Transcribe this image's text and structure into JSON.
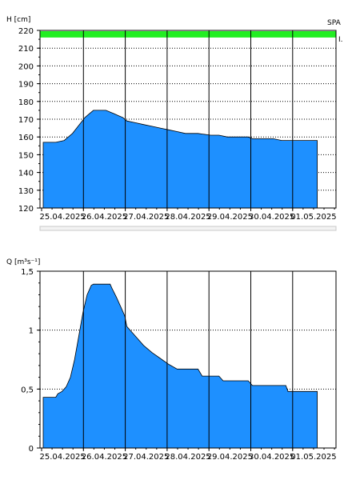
{
  "chart_data": [
    {
      "type": "area",
      "ylabel": "H [cm]",
      "corner_label": "SPA",
      "marker_label": "I.",
      "ylim": [
        120,
        220
      ],
      "yticks": [
        "120",
        "130",
        "140",
        "150",
        "160",
        "170",
        "180",
        "190",
        "200",
        "210",
        "220"
      ],
      "x_dates": [
        "25.04.2025",
        "26.04.2025",
        "27.04.2025",
        "28.04.2025",
        "29.04.2025",
        "30.04.2025",
        "01.05.2025"
      ],
      "grid": true,
      "threshold_band": {
        "from": 216,
        "to": 220,
        "color": "#22ee22"
      },
      "fill_color": "#1e90ff",
      "series": [
        {
          "values": [
            [
              0.0,
              157
            ],
            [
              0.3,
              157
            ],
            [
              0.5,
              158
            ],
            [
              0.6,
              160
            ],
            [
              0.7,
              162
            ],
            [
              0.8,
              165
            ],
            [
              0.9,
              168
            ],
            [
              1.0,
              171
            ],
            [
              1.1,
              173
            ],
            [
              1.2,
              175
            ],
            [
              1.5,
              175
            ],
            [
              1.6,
              174
            ],
            [
              1.7,
              173
            ],
            [
              1.8,
              172
            ],
            [
              1.9,
              171
            ],
            [
              2.0,
              169
            ],
            [
              2.2,
              168
            ],
            [
              2.4,
              167
            ],
            [
              2.6,
              166
            ],
            [
              2.8,
              165
            ],
            [
              3.0,
              164
            ],
            [
              3.2,
              163
            ],
            [
              3.4,
              162
            ],
            [
              3.7,
              162
            ],
            [
              4.0,
              161
            ],
            [
              4.2,
              161
            ],
            [
              4.4,
              160
            ],
            [
              4.9,
              160
            ],
            [
              5.0,
              159
            ],
            [
              5.4,
              159
            ],
            [
              5.5,
              159
            ],
            [
              5.7,
              158
            ],
            [
              6.55,
              158
            ]
          ]
        }
      ]
    },
    {
      "type": "area",
      "ylabel": "Q [m³s⁻¹]",
      "ylim": [
        0,
        1.5
      ],
      "yticks": [
        "0",
        "0,5",
        "1",
        "1,5"
      ],
      "x_dates": [
        "25.04.2025",
        "26.04.2025",
        "27.04.2025",
        "28.04.2025",
        "29.04.2025",
        "30.04.2025",
        "01.05.2025"
      ],
      "grid": true,
      "fill_color": "#1e90ff",
      "series": [
        {
          "values": [
            [
              0.0,
              0.43
            ],
            [
              0.3,
              0.43
            ],
            [
              0.35,
              0.46
            ],
            [
              0.45,
              0.48
            ],
            [
              0.55,
              0.52
            ],
            [
              0.65,
              0.6
            ],
            [
              0.75,
              0.75
            ],
            [
              0.85,
              0.95
            ],
            [
              0.95,
              1.15
            ],
            [
              1.05,
              1.3
            ],
            [
              1.15,
              1.38
            ],
            [
              1.2,
              1.39
            ],
            [
              1.6,
              1.39
            ],
            [
              1.65,
              1.35
            ],
            [
              1.75,
              1.28
            ],
            [
              1.85,
              1.2
            ],
            [
              1.95,
              1.12
            ],
            [
              2.0,
              1.03
            ],
            [
              2.2,
              0.95
            ],
            [
              2.4,
              0.87
            ],
            [
              2.6,
              0.81
            ],
            [
              2.8,
              0.76
            ],
            [
              3.0,
              0.71
            ],
            [
              3.2,
              0.67
            ],
            [
              3.7,
              0.67
            ],
            [
              3.8,
              0.61
            ],
            [
              4.2,
              0.61
            ],
            [
              4.3,
              0.57
            ],
            [
              4.9,
              0.57
            ],
            [
              5.0,
              0.53
            ],
            [
              5.8,
              0.53
            ],
            [
              5.85,
              0.48
            ],
            [
              6.55,
              0.48
            ]
          ]
        }
      ]
    }
  ]
}
